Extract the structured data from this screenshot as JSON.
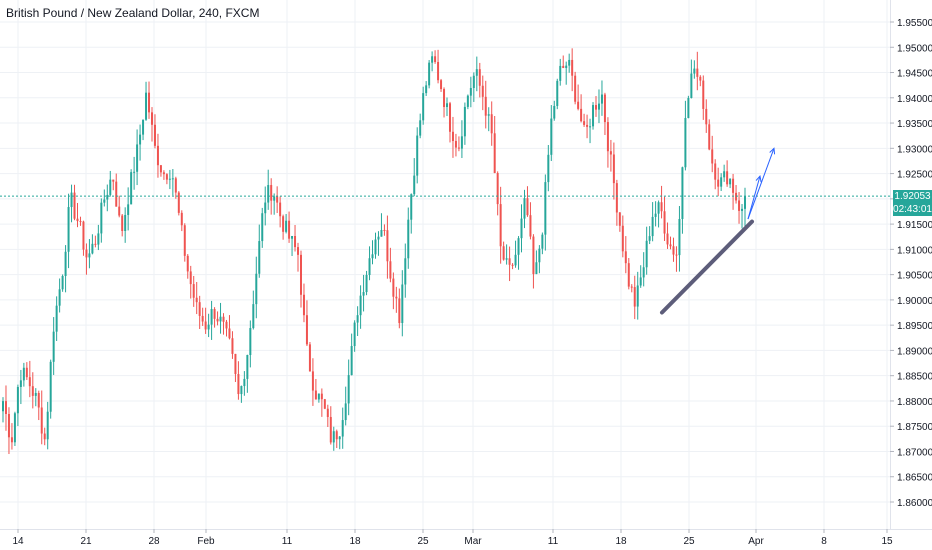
{
  "title": "British Pound / New Zealand Dollar, 240, FXCM",
  "current_price": "1.92053",
  "countdown": "02:43:01",
  "colors": {
    "up": "#26a69a",
    "down": "#ef5350",
    "price_line": "#26a69a",
    "trendline": "#5d5d7a",
    "arrow": "#2962ff",
    "grid": "#eef1f5",
    "text": "#131722",
    "price_badge": "#26a69a",
    "countdown_badge": "#26a69a"
  },
  "chart_data": {
    "type": "candlestick",
    "symbol": "British Pound / New Zealand Dollar",
    "interval": "240",
    "source": "FXCM",
    "ylim": [
      1.855,
      1.957
    ],
    "y_ticks": [
      "1.95500",
      "1.95000",
      "1.94500",
      "1.94000",
      "1.93500",
      "1.93000",
      "1.92500",
      "1.92000",
      "1.91500",
      "1.91000",
      "1.90500",
      "1.90000",
      "1.89500",
      "1.89000",
      "1.88500",
      "1.88000",
      "1.87500",
      "1.87000",
      "1.86500",
      "1.86000"
    ],
    "x_ticks": [
      "14",
      "21",
      "28",
      "Feb",
      "11",
      "18",
      "25",
      "Mar",
      "11",
      "18",
      "25",
      "Apr",
      "8",
      "15"
    ],
    "grid": true,
    "last_price": 1.92053,
    "trendline": {
      "from": [
        "Mar 21",
        1.8975
      ],
      "to": [
        "Mar 29",
        1.9155
      ]
    },
    "projection_arrows": [
      {
        "from": 1.916,
        "to": 1.9245
      },
      {
        "from": 1.916,
        "to": 1.93
      }
    ],
    "close_path": [
      [
        "Jan 10",
        1.88
      ],
      [
        "Jan 11",
        1.872
      ],
      [
        "Jan 12",
        1.886
      ],
      [
        "Jan 14",
        1.884
      ],
      [
        "Jan 15",
        1.88
      ],
      [
        "Jan 16",
        1.872
      ],
      [
        "Jan 17",
        1.895
      ],
      [
        "Jan 18",
        1.905
      ],
      [
        "Jan 19",
        1.92
      ],
      [
        "Jan 20",
        1.915
      ],
      [
        "Jan 21",
        1.908
      ],
      [
        "Jan 22",
        1.912
      ],
      [
        "Jan 23",
        1.92
      ],
      [
        "Jan 24",
        1.925
      ],
      [
        "Jan 25",
        1.913
      ],
      [
        "Jan 26",
        1.922
      ],
      [
        "Jan 27",
        1.93
      ],
      [
        "Jan 28",
        1.941
      ],
      [
        "Jan 29",
        1.93
      ],
      [
        "Jan 30",
        1.925
      ],
      [
        "Jan 31",
        1.926
      ],
      [
        "Feb 1",
        1.915
      ],
      [
        "Feb 2",
        1.905
      ],
      [
        "Feb 3",
        1.898
      ],
      [
        "Feb 4",
        1.895
      ],
      [
        "Feb 5",
        1.898
      ],
      [
        "Feb 6",
        1.895
      ],
      [
        "Feb 7",
        1.89
      ],
      [
        "Feb 8",
        1.88
      ],
      [
        "Feb 9",
        1.89
      ],
      [
        "Feb 10",
        1.905
      ],
      [
        "Feb 11",
        1.92
      ],
      [
        "Feb 12",
        1.922
      ],
      [
        "Feb 13",
        1.916
      ],
      [
        "Feb 14",
        1.912
      ],
      [
        "Feb 15",
        1.909
      ],
      [
        "Feb 16",
        1.89
      ],
      [
        "Feb 17",
        1.882
      ],
      [
        "Feb 18",
        1.879
      ],
      [
        "Feb 19",
        1.872
      ],
      [
        "Feb 20",
        1.875
      ],
      [
        "Feb 21",
        1.885
      ],
      [
        "Feb 22",
        1.898
      ],
      [
        "Feb 23",
        1.905
      ],
      [
        "Feb 24",
        1.912
      ],
      [
        "Feb 25",
        1.915
      ],
      [
        "Feb 26",
        1.905
      ],
      [
        "Feb 27",
        1.897
      ],
      [
        "Feb 28",
        1.915
      ],
      [
        "Mar 1",
        1.93
      ],
      [
        "Mar 2",
        1.942
      ],
      [
        "Mar 3",
        1.948
      ],
      [
        "Mar 4",
        1.942
      ],
      [
        "Mar 5",
        1.935
      ],
      [
        "Mar 6",
        1.93
      ],
      [
        "Mar 7",
        1.94
      ],
      [
        "Mar 8",
        1.945
      ],
      [
        "Mar 9",
        1.94
      ],
      [
        "Mar 10",
        1.932
      ],
      [
        "Mar 11",
        1.91
      ],
      [
        "Mar 12",
        1.905
      ],
      [
        "Mar 13",
        1.91
      ],
      [
        "Mar 14",
        1.92
      ],
      [
        "Mar 15",
        1.903
      ],
      [
        "Mar 16",
        1.915
      ],
      [
        "Mar 17",
        1.935
      ],
      [
        "Mar 18",
        1.945
      ],
      [
        "Mar 19",
        1.947
      ],
      [
        "Mar 20",
        1.94
      ],
      [
        "Mar 21",
        1.932
      ],
      [
        "Mar 22",
        1.938
      ],
      [
        "Mar 23",
        1.941
      ],
      [
        "Mar 24",
        1.928
      ],
      [
        "Mar 25",
        1.917
      ],
      [
        "Mar 26",
        1.905
      ],
      [
        "Mar 27",
        1.899
      ],
      [
        "Mar 28",
        1.907
      ],
      [
        "Mar 29",
        1.917
      ],
      [
        "Mar 30",
        1.918
      ],
      [
        "Mar 31",
        1.911
      ],
      [
        "Apr 1",
        1.909
      ],
      [
        "Apr 2",
        1.94
      ],
      [
        "Apr 3",
        1.946
      ],
      [
        "Apr 4",
        1.94
      ],
      [
        "Apr 5",
        1.928
      ],
      [
        "Apr 6",
        1.923
      ],
      [
        "Apr 7",
        1.925
      ],
      [
        "Apr 8",
        1.92
      ],
      [
        "Apr 9",
        1.9155
      ]
    ]
  }
}
